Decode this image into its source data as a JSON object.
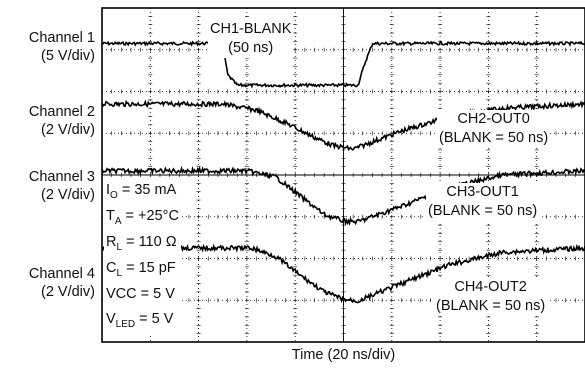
{
  "chart_data": {
    "type": "line",
    "title": "",
    "xlabel": "Time (20 ns/div)",
    "x_divisions": 10,
    "y_divisions": 8,
    "channels": [
      {
        "name": "Channel 1",
        "scale": "(5 V/div)",
        "trace_label": "CH1-BLANK",
        "trace_sublabel": "(50 ns)"
      },
      {
        "name": "Channel 2",
        "scale": "(2 V/div)",
        "trace_label": "CH2-OUT0",
        "trace_sublabel": "(BLANK = 50 ns)"
      },
      {
        "name": "Channel 3",
        "scale": "(2 V/div)",
        "trace_label": "CH3-OUT1",
        "trace_sublabel": "(BLANK = 50 ns)"
      },
      {
        "name": "Channel 4",
        "scale": "(2 V/div)",
        "trace_label": "CH4-OUT2",
        "trace_sublabel": "(BLANK = 50 ns)"
      }
    ],
    "conditions": [
      {
        "sym": "I",
        "sub": "O",
        "rest": " = 35 mA"
      },
      {
        "sym": "T",
        "sub": "A",
        "rest": " = +25°C"
      },
      {
        "sym": "R",
        "sub": "L",
        "rest": " = 110 Ω"
      },
      {
        "sym": "C",
        "sub": "L",
        "rest": " = 15 pF"
      },
      {
        "sym": "VCC",
        "sub": "",
        "rest": " = 5 V"
      },
      {
        "sym": "V",
        "sub": "LED",
        "rest": " = 5 V"
      }
    ],
    "traces": [
      {
        "name": "CH1-BLANK",
        "baseline_div": 0.85,
        "low_div": 1.85,
        "points": [
          [
            0,
            0.85
          ],
          [
            2.5,
            0.85
          ],
          [
            2.6,
            1.6
          ],
          [
            2.8,
            1.85
          ],
          [
            5.3,
            1.85
          ],
          [
            5.45,
            1.3
          ],
          [
            5.6,
            0.85
          ],
          [
            10,
            0.85
          ]
        ]
      },
      {
        "name": "CH2-OUT0",
        "baseline_div": 2.3,
        "low_div": 3.3,
        "points": [
          [
            0,
            2.3
          ],
          [
            2.5,
            2.3
          ],
          [
            3.2,
            2.45
          ],
          [
            3.8,
            2.75
          ],
          [
            4.4,
            3.1
          ],
          [
            4.8,
            3.3
          ],
          [
            5.2,
            3.38
          ],
          [
            6.2,
            2.95
          ],
          [
            7.2,
            2.6
          ],
          [
            8.3,
            2.4
          ],
          [
            10,
            2.3
          ]
        ]
      },
      {
        "name": "CH3-OUT1",
        "baseline_div": 3.9,
        "low_div": 5.1,
        "points": [
          [
            0,
            3.9
          ],
          [
            3.0,
            3.9
          ],
          [
            3.6,
            4.05
          ],
          [
            4.1,
            4.5
          ],
          [
            4.6,
            4.95
          ],
          [
            5.0,
            5.1
          ],
          [
            5.3,
            5.12
          ],
          [
            6.2,
            4.75
          ],
          [
            7.2,
            4.3
          ],
          [
            8.3,
            4.0
          ],
          [
            10,
            3.9
          ]
        ]
      },
      {
        "name": "CH4-OUT2",
        "baseline_div": 5.75,
        "low_div": 7.0,
        "points": [
          [
            0,
            5.75
          ],
          [
            3.1,
            5.75
          ],
          [
            3.6,
            5.95
          ],
          [
            4.1,
            6.4
          ],
          [
            4.6,
            6.8
          ],
          [
            5.0,
            6.98
          ],
          [
            5.3,
            7.02
          ],
          [
            6.2,
            6.6
          ],
          [
            7.2,
            6.15
          ],
          [
            8.3,
            5.85
          ],
          [
            10,
            5.75
          ]
        ]
      }
    ],
    "grid": true
  }
}
